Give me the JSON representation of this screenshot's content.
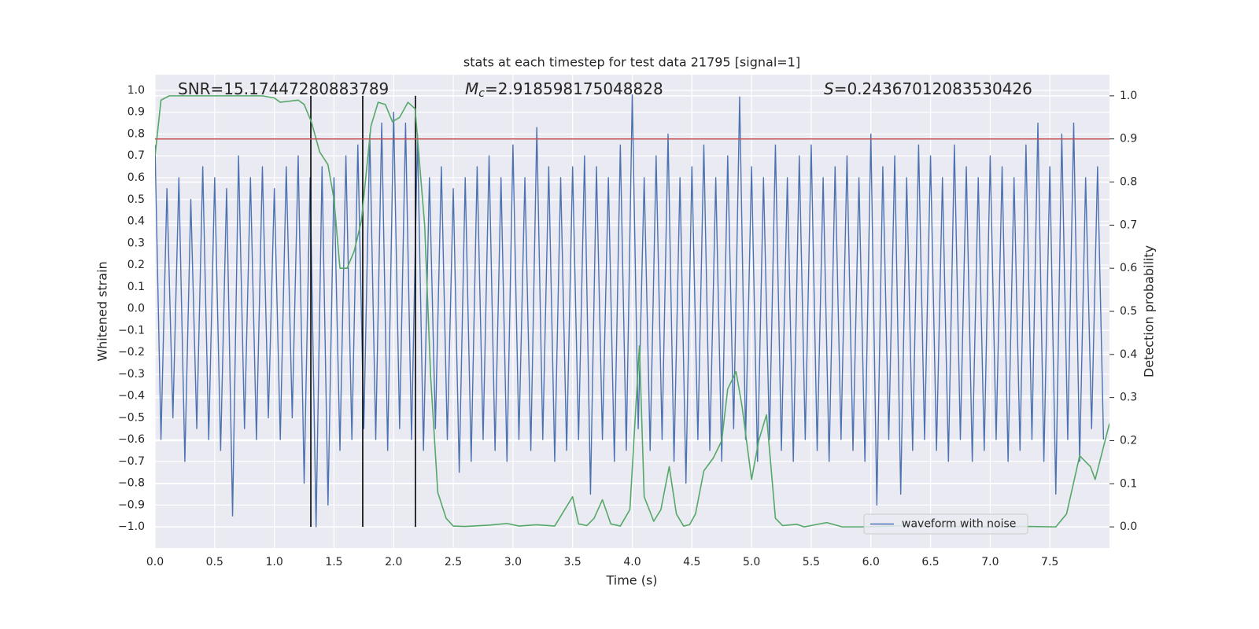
{
  "chart_data": {
    "type": "line",
    "title": "stats at each timestep for test data 21795 [signal=1]",
    "x_label": "Time (s)",
    "y_label": "Whitened strain",
    "y2_label": "Detection probability",
    "annotations": [
      {
        "text": "SNR=15.17447280883789"
      },
      {
        "symbol": "M",
        "subscript": "c",
        "text": "=2.918598175048828"
      },
      {
        "symbol": "S",
        "text": "=0.24367012083530426"
      }
    ],
    "grid": true,
    "legend": "lower right",
    "background": "#eaeaf2",
    "xlim": [
      0,
      8.0
    ],
    "ylim": [
      -1.097,
      1.072
    ],
    "y2lim": [
      -0.049,
      1.049
    ],
    "xticks": [
      {
        "value": 0,
        "label": "0.0"
      },
      {
        "value": 0.5,
        "label": "0.5"
      },
      {
        "value": 1,
        "label": "1.0"
      },
      {
        "value": 1.5,
        "label": "1.5"
      },
      {
        "value": 2,
        "label": "2.0"
      },
      {
        "value": 2.5,
        "label": "2.5"
      },
      {
        "value": 3,
        "label": "3.0"
      },
      {
        "value": 3.5,
        "label": "3.5"
      },
      {
        "value": 4,
        "label": "4.0"
      },
      {
        "value": 4.5,
        "label": "4.5"
      },
      {
        "value": 5,
        "label": "5.0"
      },
      {
        "value": 5.5,
        "label": "5.5"
      },
      {
        "value": 6,
        "label": "6.0"
      },
      {
        "value": 6.5,
        "label": "6.5"
      },
      {
        "value": 7,
        "label": "7.0"
      },
      {
        "value": 7.5,
        "label": "7.5"
      }
    ],
    "yticks": [
      {
        "value": -1,
        "label": "−1.0"
      },
      {
        "value": -0.9,
        "label": "−0.9"
      },
      {
        "value": -0.8,
        "label": "−0.8"
      },
      {
        "value": -0.7,
        "label": "−0.7"
      },
      {
        "value": -0.6,
        "label": "−0.6"
      },
      {
        "value": -0.5,
        "label": "−0.5"
      },
      {
        "value": -0.4,
        "label": "−0.4"
      },
      {
        "value": -0.3,
        "label": "−0.3"
      },
      {
        "value": -0.2,
        "label": "−0.2"
      },
      {
        "value": -0.1,
        "label": "−0.1"
      },
      {
        "value": 0,
        "label": "0.0"
      },
      {
        "value": 0.1,
        "label": "0.1"
      },
      {
        "value": 0.2,
        "label": "0.2"
      },
      {
        "value": 0.3,
        "label": "0.3"
      },
      {
        "value": 0.4,
        "label": "0.4"
      },
      {
        "value": 0.5,
        "label": "0.5"
      },
      {
        "value": 0.6,
        "label": "0.6"
      },
      {
        "value": 0.7,
        "label": "0.7"
      },
      {
        "value": 0.8,
        "label": "0.8"
      },
      {
        "value": 0.9,
        "label": "0.9"
      },
      {
        "value": 1,
        "label": "1.0"
      }
    ],
    "y2ticks": [
      {
        "value": 0,
        "label": "0.0"
      },
      {
        "value": 0.1,
        "label": "0.1"
      },
      {
        "value": 0.2,
        "label": "0.2"
      },
      {
        "value": 0.3,
        "label": "0.3"
      },
      {
        "value": 0.4,
        "label": "0.4"
      },
      {
        "value": 0.5,
        "label": "0.5"
      },
      {
        "value": 0.6,
        "label": "0.6"
      },
      {
        "value": 0.7,
        "label": "0.7"
      },
      {
        "value": 0.8,
        "label": "0.8"
      },
      {
        "value": 0.9,
        "label": "0.9"
      },
      {
        "value": 1,
        "label": "1.0"
      }
    ],
    "threshold": {
      "value": 0.9,
      "axis": "y2",
      "color": "#c44e52"
    },
    "markers": {
      "x": [
        1.306,
        1.741,
        2.183
      ],
      "color": "#000000"
    },
    "series": [
      {
        "name": "waveform with noise",
        "color": "#4c72b0",
        "x": [
          0,
          0.05,
          0.1,
          0.15,
          0.2,
          0.25,
          0.3,
          0.35,
          0.4,
          0.45,
          0.5,
          0.55,
          0.6,
          0.65,
          0.7,
          0.75,
          0.8,
          0.85,
          0.9,
          0.95,
          1,
          1.05,
          1.1,
          1.15,
          1.2,
          1.25,
          1.3,
          1.35,
          1.4,
          1.45,
          1.5,
          1.55,
          1.6,
          1.65,
          1.7,
          1.75,
          1.8,
          1.85,
          1.9,
          1.95,
          2,
          2.05,
          2.1,
          2.15,
          2.2,
          2.25,
          2.3,
          2.35,
          2.4,
          2.45,
          2.5,
          2.55,
          2.6,
          2.65,
          2.7,
          2.75,
          2.8,
          2.85,
          2.9,
          2.95,
          3,
          3.05,
          3.1,
          3.15,
          3.2,
          3.25,
          3.3,
          3.35,
          3.4,
          3.45,
          3.5,
          3.55,
          3.6,
          3.65,
          3.7,
          3.75,
          3.8,
          3.85,
          3.9,
          3.95,
          4,
          4.05,
          4.1,
          4.15,
          4.2,
          4.25,
          4.3,
          4.35,
          4.4,
          4.45,
          4.5,
          4.55,
          4.6,
          4.65,
          4.7,
          4.75,
          4.8,
          4.85,
          4.9,
          4.95,
          5,
          5.05,
          5.1,
          5.15,
          5.2,
          5.25,
          5.3,
          5.35,
          5.4,
          5.45,
          5.5,
          5.55,
          5.6,
          5.65,
          5.7,
          5.75,
          5.8,
          5.85,
          5.9,
          5.95,
          6,
          6.05,
          6.1,
          6.15,
          6.2,
          6.25,
          6.3,
          6.35,
          6.4,
          6.45,
          6.5,
          6.55,
          6.6,
          6.65,
          6.7,
          6.75,
          6.8,
          6.85,
          6.9,
          6.95,
          7,
          7.05,
          7.1,
          7.15,
          7.2,
          7.25,
          7.3,
          7.35,
          7.4,
          7.45,
          7.5,
          7.55,
          7.6,
          7.65,
          7.7,
          7.75,
          7.8,
          7.85,
          7.9,
          7.95
        ],
        "values": [
          0.75,
          -0.6,
          0.55,
          -0.5,
          0.6,
          -0.7,
          0.5,
          -0.55,
          0.65,
          -0.6,
          0.6,
          -0.65,
          0.55,
          -0.95,
          0.7,
          -0.55,
          0.6,
          -0.6,
          0.65,
          -0.5,
          0.55,
          -0.6,
          0.65,
          -0.5,
          0.7,
          -0.8,
          0.6,
          -1.0,
          0.65,
          -0.9,
          0.6,
          -0.65,
          0.7,
          -0.6,
          0.75,
          -0.55,
          0.8,
          -0.6,
          0.85,
          -0.65,
          0.9,
          -0.55,
          0.85,
          -0.6,
          0.8,
          -0.65,
          0.6,
          -0.55,
          0.65,
          -0.6,
          0.55,
          -0.75,
          0.6,
          -0.7,
          0.65,
          -0.6,
          0.7,
          -0.65,
          0.6,
          -0.7,
          0.75,
          -0.6,
          0.6,
          -0.65,
          0.83,
          -0.6,
          0.65,
          -0.7,
          0.6,
          -0.65,
          0.65,
          -0.6,
          0.7,
          -0.85,
          0.65,
          -0.6,
          0.6,
          -0.7,
          0.75,
          -0.65,
          0.98,
          -0.55,
          0.6,
          -0.65,
          0.7,
          -0.6,
          0.8,
          -0.7,
          0.6,
          -0.8,
          0.65,
          -0.6,
          0.75,
          -0.65,
          0.6,
          -0.7,
          0.7,
          -0.55,
          0.97,
          -0.6,
          0.65,
          -0.7,
          0.6,
          -0.6,
          0.75,
          -0.65,
          0.6,
          -0.7,
          0.7,
          -0.6,
          0.75,
          -0.65,
          0.6,
          -0.7,
          0.65,
          -0.6,
          0.7,
          -0.65,
          0.6,
          -0.7,
          0.8,
          -0.9,
          0.65,
          -0.6,
          0.7,
          -0.85,
          0.6,
          -0.65,
          0.75,
          -0.6,
          0.7,
          -0.65,
          0.6,
          -0.7,
          0.75,
          -0.6,
          0.65,
          -0.7,
          0.6,
          -0.65,
          0.7,
          -0.6,
          0.65,
          -0.7,
          0.6,
          -0.65,
          0.75,
          -0.6,
          0.85,
          -0.7,
          0.65,
          -0.85,
          0.8,
          -0.6,
          0.85,
          -0.7,
          0.6,
          -0.55,
          0.65,
          -0.6
        ]
      },
      {
        "color": "#55a868",
        "axis": "y2",
        "x": [
          0,
          0.05,
          0.12,
          0.5,
          0.9,
          1.0,
          1.05,
          1.2,
          1.25,
          1.31,
          1.38,
          1.45,
          1.5,
          1.55,
          1.61,
          1.67,
          1.73,
          1.81,
          1.87,
          1.93,
          1.99,
          2.05,
          2.12,
          2.18,
          2.26,
          2.31,
          2.37,
          2.44,
          2.5,
          2.6,
          2.8,
          2.95,
          3.05,
          3.2,
          3.35,
          3.5,
          3.55,
          3.62,
          3.68,
          3.75,
          3.82,
          3.9,
          3.98,
          4.06,
          4.1,
          4.18,
          4.24,
          4.31,
          4.37,
          4.43,
          4.48,
          4.53,
          4.6,
          4.68,
          4.75,
          4.8,
          4.87,
          4.92,
          5.0,
          5.06,
          5.125,
          5.2,
          5.26,
          5.38,
          5.44,
          5.63,
          5.76,
          5.96,
          6.3,
          6.5,
          7.0,
          7.3,
          7.55,
          7.64,
          7.75,
          7.84,
          7.88,
          8.0
        ],
        "values": [
          0.86,
          0.99,
          1.0,
          1.0,
          1.0,
          0.995,
          0.985,
          0.99,
          0.98,
          0.94,
          0.87,
          0.84,
          0.76,
          0.6,
          0.6,
          0.64,
          0.71,
          0.93,
          0.985,
          0.98,
          0.94,
          0.95,
          0.985,
          0.97,
          0.7,
          0.35,
          0.08,
          0.02,
          0.002,
          0.001,
          0.004,
          0.008,
          0.002,
          0.005,
          0.002,
          0.07,
          0.007,
          0.003,
          0.02,
          0.063,
          0.007,
          0.002,
          0.04,
          0.42,
          0.07,
          0.013,
          0.04,
          0.14,
          0.03,
          0.002,
          0.005,
          0.03,
          0.13,
          0.16,
          0.2,
          0.32,
          0.36,
          0.28,
          0.11,
          0.2,
          0.26,
          0.02,
          0.003,
          0.006,
          0.0,
          0.01,
          0.0,
          0.0,
          0.003,
          0.002,
          0.0,
          0.001,
          0.0,
          0.03,
          0.165,
          0.14,
          0.11,
          0.24
        ]
      }
    ]
  }
}
